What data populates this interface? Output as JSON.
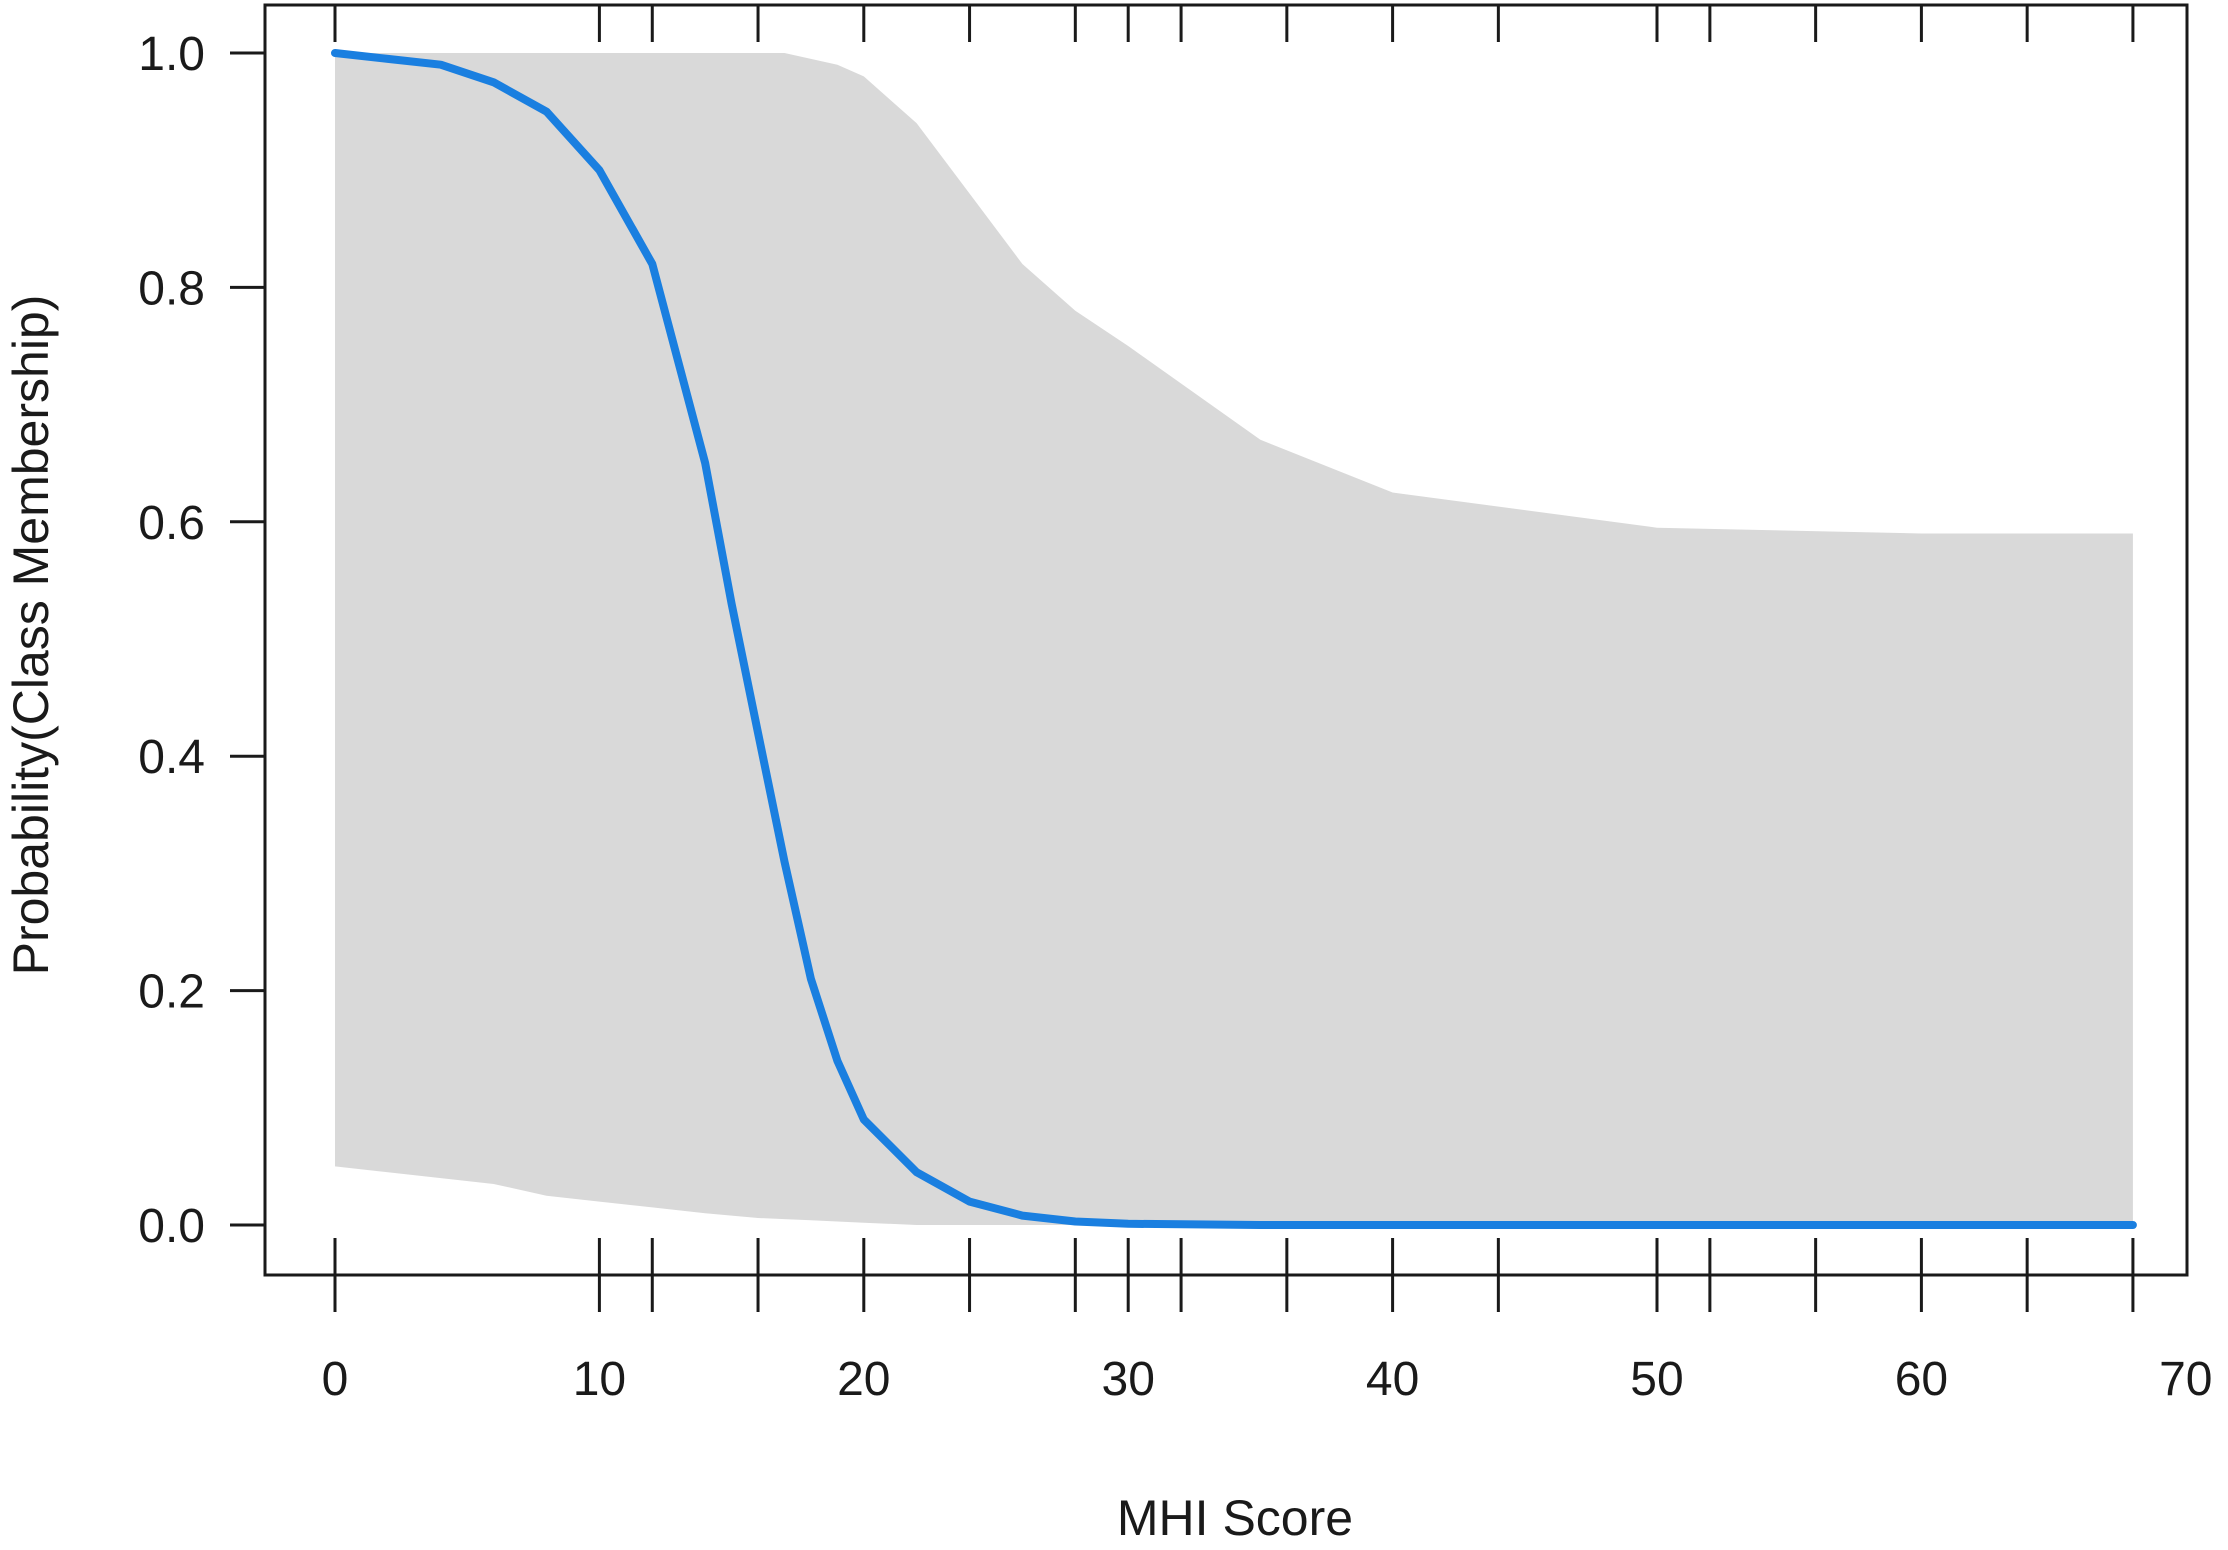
{
  "chart_data": {
    "type": "line",
    "xlabel": "MHI Score",
    "ylabel": "Probability(Class Membership)",
    "xlim": [
      0,
      70
    ],
    "ylim": [
      0,
      1.0
    ],
    "x_tick_labels": [
      "0",
      "10",
      "20",
      "30",
      "40",
      "50",
      "60",
      "70"
    ],
    "x_ticks": [
      0,
      10,
      20,
      30,
      40,
      50,
      60,
      70
    ],
    "x_minor_ticks": [
      12,
      16,
      24,
      28,
      32,
      36,
      44,
      52,
      56,
      64,
      68
    ],
    "y_tick_labels": [
      "0.0",
      "0.2",
      "0.4",
      "0.6",
      "0.8",
      "1.0"
    ],
    "y_ticks": [
      0.0,
      0.2,
      0.4,
      0.6,
      0.8,
      1.0
    ],
    "grid": false,
    "colors": {
      "line": "#1a7fe0",
      "band": "#d9d9d9",
      "axis": "#1a1a1a"
    },
    "series": [
      {
        "x": [
          0,
          2,
          4,
          6,
          8,
          10,
          12,
          14,
          15,
          16,
          17,
          18,
          19,
          20,
          22,
          24,
          26,
          28,
          30,
          35,
          40,
          50,
          60,
          68
        ],
        "y": [
          1.0,
          0.995,
          0.99,
          0.975,
          0.95,
          0.9,
          0.82,
          0.65,
          0.53,
          0.42,
          0.31,
          0.21,
          0.14,
          0.09,
          0.045,
          0.02,
          0.008,
          0.003,
          0.001,
          0.0,
          0.0,
          0.0,
          0.0,
          0.0
        ],
        "band_upper": [
          1.0,
          1.0,
          1.0,
          1.0,
          1.0,
          1.0,
          1.0,
          1.0,
          1.0,
          1.0,
          1.0,
          0.995,
          0.99,
          0.98,
          0.94,
          0.88,
          0.82,
          0.78,
          0.75,
          0.67,
          0.625,
          0.595,
          0.59,
          0.59
        ],
        "band_lower": [
          0.05,
          0.045,
          0.04,
          0.035,
          0.025,
          0.02,
          0.015,
          0.01,
          0.008,
          0.006,
          0.005,
          0.004,
          0.003,
          0.002,
          0.0,
          0.0,
          0.0,
          0.0,
          0.0,
          0.0,
          0.0,
          0.0,
          0.0,
          0.0
        ]
      }
    ]
  }
}
